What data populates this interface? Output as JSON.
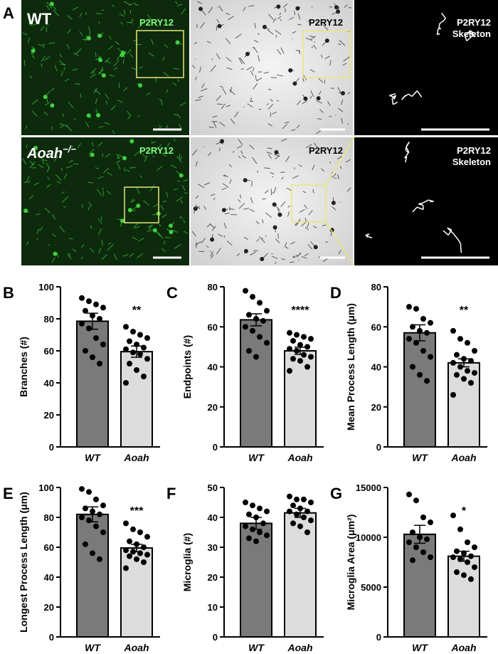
{
  "panel_a": {
    "letter": "A",
    "rows": [
      {
        "genotype": "WT",
        "stain": "P2RY12",
        "skeleton_title": [
          "P2RY12",
          "Skeleton"
        ]
      },
      {
        "genotype": "Aoah",
        "genotype_sup": "−/−",
        "stain": "P2RY12",
        "skeleton_title": [
          "P2RY12",
          "Skeleton"
        ]
      }
    ]
  },
  "chart_data": [
    {
      "type": "bar",
      "panel": "B",
      "ylabel": "Branches (#)",
      "categories": [
        "WT",
        "Aoah"
      ],
      "values": [
        78.5,
        59.5
      ],
      "errors": [
        5,
        3.5
      ],
      "points": [
        [
          93,
          91,
          89,
          87,
          85,
          82,
          80,
          77,
          74,
          68,
          64,
          60,
          56,
          52
        ],
        [
          75,
          72,
          70,
          68,
          66,
          64,
          62,
          61,
          59,
          58,
          55,
          52,
          48,
          44,
          40
        ]
      ],
      "significance": "**",
      "colors": [
        "#7a7a7a",
        "#dcdcdc"
      ],
      "ylim": [
        0,
        100
      ],
      "yticks": [
        0,
        20,
        40,
        60,
        80,
        100
      ]
    },
    {
      "type": "bar",
      "panel": "C",
      "ylabel": "Endpoints (#)",
      "categories": [
        "WT",
        "Aoah"
      ],
      "values": [
        63.5,
        48
      ],
      "errors": [
        3,
        1.8
      ],
      "points": [
        [
          78,
          75,
          72,
          68,
          66,
          64,
          63,
          60,
          58,
          55,
          52,
          48,
          45
        ],
        [
          57,
          56,
          55,
          54,
          53,
          51,
          50,
          49,
          48,
          46,
          45,
          44,
          43,
          40,
          38
        ]
      ],
      "significance": "****",
      "colors": [
        "#7a7a7a",
        "#dcdcdc"
      ],
      "ylim": [
        0,
        80
      ],
      "yticks": [
        0,
        20,
        40,
        60,
        80
      ]
    },
    {
      "type": "bar",
      "panel": "D",
      "ylabel": "Mean Process Length (μm)",
      "categories": [
        "WT",
        "Aoah"
      ],
      "values": [
        57,
        42
      ],
      "errors": [
        4,
        2
      ],
      "points": [
        [
          70,
          69,
          64,
          62,
          60,
          58,
          57,
          54,
          52,
          48,
          45,
          40,
          36,
          33
        ],
        [
          58,
          54,
          52,
          48,
          46,
          44,
          43,
          42,
          40,
          38,
          37,
          36,
          34,
          32,
          26
        ]
      ],
      "significance": "**",
      "colors": [
        "#7a7a7a",
        "#dcdcdc"
      ],
      "ylim": [
        0,
        80
      ],
      "yticks": [
        0,
        20,
        40,
        60,
        80
      ]
    },
    {
      "type": "bar",
      "panel": "E",
      "ylabel": "Longest Process Length (μm)",
      "categories": [
        "WT",
        "Aoah"
      ],
      "values": [
        82,
        59.5
      ],
      "errors": [
        5,
        2.5
      ],
      "points": [
        [
          99,
          97,
          92,
          88,
          86,
          84,
          82,
          80,
          78,
          74,
          70,
          62,
          56,
          52
        ],
        [
          76,
          72,
          70,
          67,
          64,
          62,
          60,
          58,
          57,
          56,
          55,
          54,
          52,
          50,
          46
        ]
      ],
      "significance": "***",
      "colors": [
        "#7a7a7a",
        "#dcdcdc"
      ],
      "ylim": [
        0,
        100
      ],
      "yticks": [
        0,
        20,
        40,
        60,
        80,
        100
      ]
    },
    {
      "type": "bar",
      "panel": "F",
      "ylabel": "Microglia (#)",
      "categories": [
        "WT",
        "Aoah"
      ],
      "values": [
        38,
        41.5
      ],
      "errors": [
        2,
        1.5
      ],
      "points": [
        [
          45,
          44,
          43,
          42,
          41,
          40,
          38,
          37,
          36,
          35,
          34,
          33,
          32
        ],
        [
          47,
          46,
          46,
          45,
          44,
          43,
          42,
          42,
          41,
          40,
          39,
          38,
          37,
          35
        ]
      ],
      "colors": [
        "#7a7a7a",
        "#dcdcdc"
      ],
      "ylim": [
        0,
        50
      ],
      "yticks": [
        0,
        10,
        20,
        30,
        40,
        50
      ]
    },
    {
      "type": "bar",
      "panel": "G",
      "ylabel": "Microglia Area (μm²)",
      "categories": [
        "WT",
        "Aoah"
      ],
      "values": [
        10300,
        8100
      ],
      "errors": [
        900,
        500
      ],
      "points": [
        [
          14300,
          13700,
          12000,
          11500,
          10500,
          10000,
          9800,
          9500,
          9000,
          8500,
          8000,
          7700
        ],
        [
          12200,
          10800,
          9500,
          9000,
          8600,
          8400,
          8100,
          8000,
          7800,
          7500,
          7000,
          6500,
          6200,
          5800
        ]
      ],
      "significance": "*",
      "colors": [
        "#7a7a7a",
        "#dcdcdc"
      ],
      "ylim": [
        0,
        15000
      ],
      "yticks": [
        0,
        5000,
        10000,
        15000
      ]
    }
  ]
}
